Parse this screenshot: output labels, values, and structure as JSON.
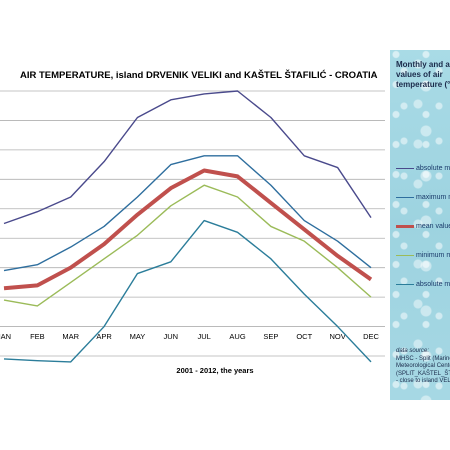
{
  "chart_data": {
    "type": "line",
    "title": "AIR TEMPERATURE, island DRVENIK VELIKI and KAŠTEL ŠTAFILIĆ - CROATIA",
    "xlabel": "2001 - 2012, the years",
    "ylabel": "",
    "categories": [
      "JAN",
      "FEB",
      "MAR",
      "APR",
      "MAY",
      "JUN",
      "JUL",
      "AUG",
      "SEP",
      "OCT",
      "NOV",
      "DEC"
    ],
    "ylim": [
      -5,
      40
    ],
    "grid": true,
    "legend_position": "right",
    "series": [
      {
        "name": "absolute m",
        "color": "#4a4a8c",
        "width": 1.4,
        "values": [
          17.5,
          19.5,
          22,
          28,
          35.5,
          38.5,
          39.5,
          40,
          35.5,
          29,
          27,
          18.5
        ]
      },
      {
        "name": "maximum m",
        "color": "#2e6e9e",
        "width": 1.4,
        "values": [
          9.5,
          10.5,
          13.5,
          17,
          22,
          27.5,
          29,
          29,
          24,
          18,
          14.5,
          10
        ]
      },
      {
        "name": "mean value",
        "color": "#c0504d",
        "width": 4,
        "values": [
          6.5,
          7,
          10,
          14,
          19,
          23.5,
          26.5,
          25.5,
          21,
          16.5,
          12,
          8
        ]
      },
      {
        "name": "minimum m",
        "color": "#9bbb59",
        "width": 1.4,
        "values": [
          4.5,
          3.5,
          7.5,
          11.5,
          15.5,
          20.5,
          24,
          22,
          17,
          14.5,
          10,
          5
        ]
      },
      {
        "name": "absolute m",
        "color": "#2b7d9a",
        "width": 1.4,
        "values": [
          -5.5,
          -5.8,
          -6,
          0,
          9,
          11,
          18,
          16,
          11.5,
          5.5,
          0,
          -6
        ]
      }
    ]
  },
  "panel": {
    "title": "Monthly and an\nvalues of air\ntemperature (°C",
    "source_head": "data source:",
    "source_body": "MHSC - Split (Marine\nMeteorological Center\n(SPLIT_KAŠTEL_ŠTAFI\n- close to island VELIK"
  },
  "colors": {
    "panel_bg": "#a6d8e4",
    "grid": "#b0b0b0"
  }
}
